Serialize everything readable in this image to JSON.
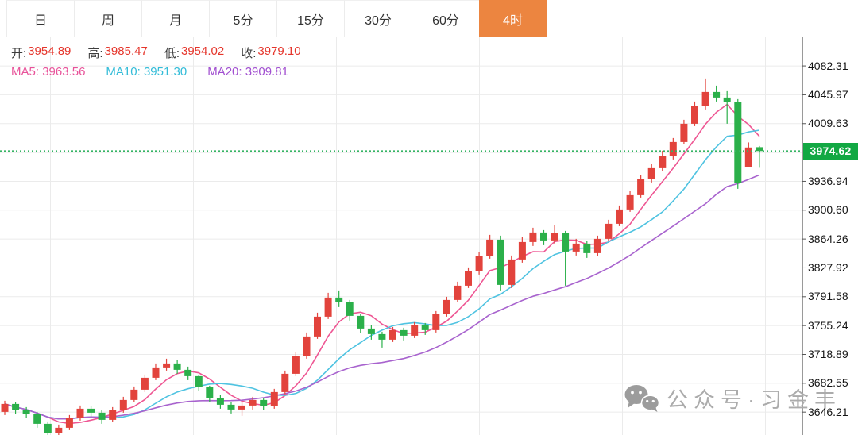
{
  "tabs": [
    {
      "label": "日",
      "active": false
    },
    {
      "label": "周",
      "active": false
    },
    {
      "label": "月",
      "active": false
    },
    {
      "label": "5分",
      "active": false
    },
    {
      "label": "15分",
      "active": false
    },
    {
      "label": "30分",
      "active": false
    },
    {
      "label": "60分",
      "active": false
    },
    {
      "label": "4时",
      "active": true
    }
  ],
  "readout": {
    "open": {
      "label": "开:",
      "value": "3954.89"
    },
    "high": {
      "label": "高:",
      "value": "3985.47"
    },
    "low": {
      "label": "低:",
      "value": "3954.02"
    },
    "close": {
      "label": "收:",
      "value": "3979.10"
    },
    "ma5": {
      "label": "MA5:",
      "value": "3963.56"
    },
    "ma10": {
      "label": "MA10:",
      "value": "3951.30"
    },
    "ma20": {
      "label": "MA20:",
      "value": "3909.81"
    }
  },
  "chart_data": {
    "type": "candlestick",
    "timeframe": "4时",
    "title": "",
    "current_price": 3974.62,
    "current_price_label": "3974.62",
    "ohlc_readout": {
      "open": 3954.89,
      "high": 3985.47,
      "low": 3954.02,
      "close": 3979.1
    },
    "moving_averages": [
      {
        "name": "MA5",
        "period": 5,
        "value": 3963.56,
        "color": "#ee5693"
      },
      {
        "name": "MA10",
        "period": 10,
        "value": 3951.3,
        "color": "#4fc3e1"
      },
      {
        "name": "MA20",
        "period": 20,
        "value": 3909.81,
        "color": "#a863ce"
      }
    ],
    "colors": {
      "up": "#e2433c",
      "down": "#2bb04a",
      "current_line": "#35b463",
      "badge": "#12a843",
      "active_tab": "#ec8540",
      "grid": "#ebebeb",
      "axis": "#9a9a9a"
    },
    "y_axis": {
      "ylim": [
        3616.9,
        4117.9
      ],
      "tick_step": 36.34,
      "hidden_tick_price": 3973.29,
      "ticks": [
        {
          "price": 4082.31,
          "label": "4082.31"
        },
        {
          "price": 4045.97,
          "label": "4045.97"
        },
        {
          "price": 4009.63,
          "label": "4009.63"
        },
        {
          "price": 3936.94,
          "label": "3936.94"
        },
        {
          "price": 3900.6,
          "label": "3900.60"
        },
        {
          "price": 3864.26,
          "label": "3864.26"
        },
        {
          "price": 3827.92,
          "label": "3827.92"
        },
        {
          "price": 3791.58,
          "label": "3791.58"
        },
        {
          "price": 3755.24,
          "label": "3755.24"
        },
        {
          "price": 3718.89,
          "label": "3718.89"
        },
        {
          "price": 3682.55,
          "label": "3682.55"
        },
        {
          "price": 3646.21,
          "label": "3646.21"
        }
      ]
    },
    "candles_format": [
      "open",
      "high",
      "low",
      "close"
    ],
    "candles": [
      [
        3646,
        3660,
        3642,
        3656
      ],
      [
        3656,
        3658,
        3643,
        3648
      ],
      [
        3648,
        3652,
        3638,
        3643
      ],
      [
        3643,
        3646,
        3626,
        3631
      ],
      [
        3631,
        3634,
        3614,
        3619
      ],
      [
        3619,
        3630,
        3616,
        3626
      ],
      [
        3626,
        3642,
        3623,
        3638
      ],
      [
        3638,
        3654,
        3635,
        3650
      ],
      [
        3650,
        3653,
        3640,
        3645
      ],
      [
        3645,
        3648,
        3631,
        3636
      ],
      [
        3636,
        3652,
        3633,
        3648
      ],
      [
        3648,
        3665,
        3645,
        3661
      ],
      [
        3661,
        3678,
        3658,
        3674
      ],
      [
        3674,
        3693,
        3671,
        3689
      ],
      [
        3689,
        3707,
        3686,
        3702
      ],
      [
        3702,
        3713,
        3698,
        3707
      ],
      [
        3707,
        3711,
        3694,
        3699
      ],
      [
        3699,
        3703,
        3686,
        3691
      ],
      [
        3691,
        3693,
        3672,
        3677
      ],
      [
        3677,
        3679,
        3658,
        3663
      ],
      [
        3663,
        3667,
        3650,
        3655
      ],
      [
        3655,
        3658,
        3644,
        3649
      ],
      [
        3649,
        3658,
        3641,
        3654
      ],
      [
        3654,
        3665,
        3649,
        3661
      ],
      [
        3661,
        3663,
        3648,
        3653
      ],
      [
        3653,
        3675,
        3650,
        3671
      ],
      [
        3671,
        3698,
        3668,
        3694
      ],
      [
        3694,
        3721,
        3691,
        3716
      ],
      [
        3716,
        3746,
        3713,
        3741
      ],
      [
        3741,
        3771,
        3738,
        3766
      ],
      [
        3766,
        3796,
        3763,
        3790
      ],
      [
        3790,
        3799,
        3778,
        3784
      ],
      [
        3784,
        3787,
        3761,
        3767
      ],
      [
        3767,
        3769,
        3745,
        3751
      ],
      [
        3751,
        3755,
        3737,
        3744
      ],
      [
        3744,
        3747,
        3727,
        3737
      ],
      [
        3737,
        3753,
        3734,
        3749
      ],
      [
        3749,
        3752,
        3736,
        3742
      ],
      [
        3742,
        3759,
        3739,
        3755
      ],
      [
        3755,
        3758,
        3743,
        3749
      ],
      [
        3749,
        3773,
        3746,
        3769
      ],
      [
        3769,
        3791,
        3766,
        3787
      ],
      [
        3787,
        3810,
        3784,
        3805
      ],
      [
        3805,
        3828,
        3802,
        3823
      ],
      [
        3823,
        3847,
        3819,
        3842
      ],
      [
        3842,
        3869,
        3839,
        3863
      ],
      [
        3863,
        3868,
        3799,
        3806
      ],
      [
        3806,
        3843,
        3802,
        3838
      ],
      [
        3838,
        3866,
        3834,
        3860
      ],
      [
        3860,
        3878,
        3855,
        3872
      ],
      [
        3872,
        3875,
        3856,
        3862
      ],
      [
        3862,
        3881,
        3858,
        3871
      ],
      [
        3871,
        3874,
        3805,
        3848
      ],
      [
        3848,
        3864,
        3843,
        3858
      ],
      [
        3858,
        3861,
        3840,
        3846
      ],
      [
        3846,
        3868,
        3842,
        3864
      ],
      [
        3864,
        3888,
        3861,
        3883
      ],
      [
        3883,
        3906,
        3880,
        3901
      ],
      [
        3901,
        3924,
        3898,
        3919
      ],
      [
        3919,
        3944,
        3916,
        3939
      ],
      [
        3939,
        3958,
        3935,
        3953
      ],
      [
        3953,
        3975,
        3949,
        3968
      ],
      [
        3968,
        3991,
        3964,
        3986
      ],
      [
        3986,
        4014,
        3983,
        4009
      ],
      [
        4009,
        4037,
        4006,
        4031
      ],
      [
        4031,
        4066,
        4027,
        4049
      ],
      [
        4049,
        4057,
        4037,
        4042
      ],
      [
        4042,
        4050,
        4009,
        4036
      ],
      [
        4036,
        4040,
        3927,
        3934
      ],
      [
        3954.89,
        3985.47,
        3954.02,
        3979.1
      ],
      [
        3979.5,
        3981.0,
        3953.5,
        3974.62
      ]
    ]
  },
  "watermark": {
    "text": "公众号·习金丰",
    "icon": "wechat-icon"
  }
}
